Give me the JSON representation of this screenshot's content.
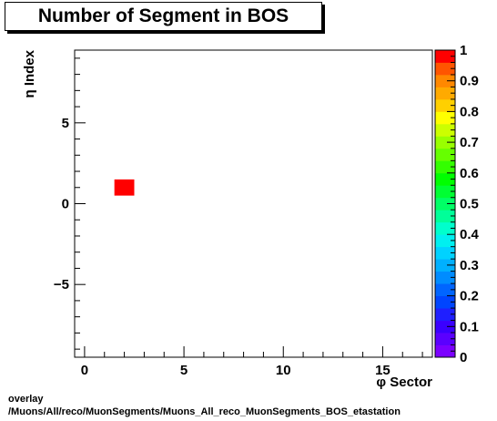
{
  "chart_data": {
    "type": "heatmap",
    "title": "Number of Segment in BOS",
    "xlabel": "φ Sector",
    "ylabel": "η Index",
    "xlim": [
      -0.5,
      17.5
    ],
    "ylim": [
      -9.5,
      9.5
    ],
    "xticks": [
      "0",
      "5",
      "10",
      "15"
    ],
    "yticks": [
      "−5",
      "0",
      "5"
    ],
    "zlim": [
      0,
      1
    ],
    "zticks": [
      "0",
      "0.1",
      "0.2",
      "0.3",
      "0.4",
      "0.5",
      "0.6",
      "0.7",
      "0.8",
      "0.9",
      "1"
    ],
    "cells": [
      {
        "x": 2,
        "y": 1,
        "z": 1
      }
    ],
    "colorbar": true
  },
  "footer": {
    "line1": "overlay",
    "line2": "/Muons/All/reco/MuonSegments/Muons_All_reco_MuonSegments_BOS_etastation"
  }
}
